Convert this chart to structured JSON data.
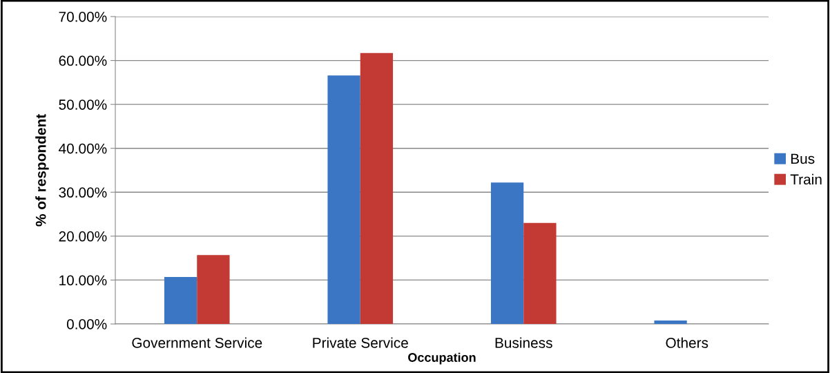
{
  "chart_data": {
    "type": "bar",
    "xlabel": "Occupation",
    "ylabel": "% of respondent",
    "categories": [
      "Government Service",
      "Private Service",
      "Business",
      "Others"
    ],
    "series": [
      {
        "name": "Bus",
        "color": "#3a76c4",
        "values": [
          10.7,
          56.6,
          32.2,
          0.8
        ]
      },
      {
        "name": "Train",
        "color": "#c23a33",
        "values": [
          15.7,
          61.7,
          23.0,
          0
        ]
      }
    ],
    "ylim": [
      0,
      70
    ],
    "yticks": [
      {
        "value": 0,
        "label": "0.00%"
      },
      {
        "value": 10,
        "label": "10.00%"
      },
      {
        "value": 20,
        "label": "20.00%"
      },
      {
        "value": 30,
        "label": "30.00%"
      },
      {
        "value": 40,
        "label": "40.00%"
      },
      {
        "value": 50,
        "label": "50.00%"
      },
      {
        "value": 60,
        "label": "60.00%"
      },
      {
        "value": 70,
        "label": "70.00%"
      }
    ],
    "grid": "y",
    "legend": "right"
  }
}
